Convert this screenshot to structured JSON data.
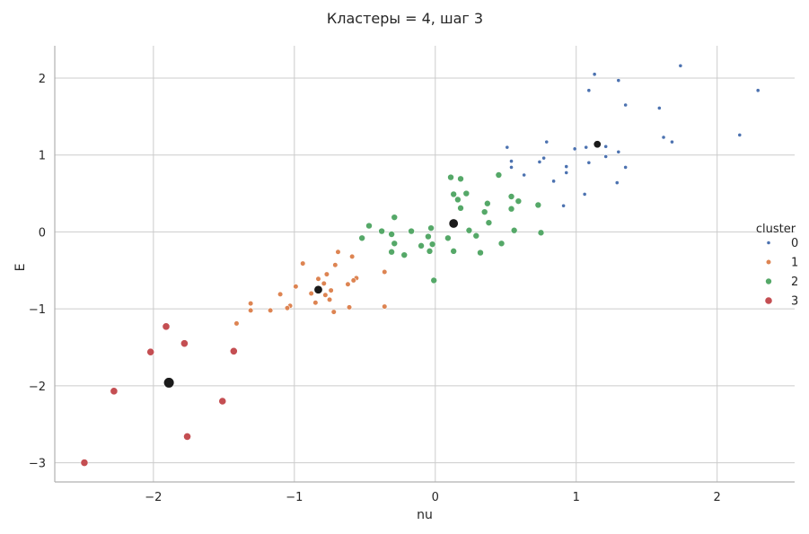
{
  "chart_data": {
    "type": "scatter",
    "title": "Кластеры = 4, шаг 3",
    "xlabel": "nu",
    "ylabel": "E",
    "xlim": [
      -2.7,
      2.55
    ],
    "ylim": [
      -3.25,
      2.42
    ],
    "xticks": [
      -2,
      -1,
      0,
      1,
      2
    ],
    "yticks": [
      -3,
      -2,
      -1,
      0,
      1,
      2
    ],
    "xtick_labels": [
      "−2",
      "−1",
      "0",
      "1",
      "2"
    ],
    "ytick_labels": [
      "−3",
      "−2",
      "−1",
      "0",
      "1",
      "2"
    ],
    "grid": true,
    "legend": {
      "title": "cluster",
      "placement": "right",
      "entries": [
        "0",
        "1",
        "2",
        "3"
      ]
    },
    "series": [
      {
        "name": "0",
        "color": "#4c72b0",
        "points": [
          [
            1.13,
            2.05
          ],
          [
            1.09,
            1.84
          ],
          [
            1.3,
            1.97
          ],
          [
            1.74,
            2.16
          ],
          [
            2.29,
            1.84
          ],
          [
            1.35,
            1.65
          ],
          [
            1.59,
            1.61
          ],
          [
            1.62,
            1.23
          ],
          [
            1.68,
            1.17
          ],
          [
            2.16,
            1.26
          ],
          [
            0.79,
            1.17
          ],
          [
            0.51,
            1.1
          ],
          [
            0.99,
            1.08
          ],
          [
            1.07,
            1.1
          ],
          [
            1.21,
            1.11
          ],
          [
            1.3,
            1.04
          ],
          [
            0.77,
            0.96
          ],
          [
            0.74,
            0.91
          ],
          [
            0.54,
            0.92
          ],
          [
            0.93,
            0.85
          ],
          [
            1.09,
            0.9
          ],
          [
            1.21,
            0.98
          ],
          [
            1.35,
            0.84
          ],
          [
            0.54,
            0.84
          ],
          [
            0.63,
            0.74
          ],
          [
            0.93,
            0.77
          ],
          [
            0.84,
            0.66
          ],
          [
            1.29,
            0.64
          ],
          [
            1.06,
            0.49
          ],
          [
            0.91,
            0.34
          ]
        ]
      },
      {
        "name": "1",
        "color": "#dd8452",
        "points": [
          [
            -0.69,
            -0.26
          ],
          [
            -0.59,
            -0.32
          ],
          [
            -0.71,
            -0.43
          ],
          [
            -0.94,
            -0.41
          ],
          [
            -0.56,
            -0.6
          ],
          [
            -0.58,
            -0.63
          ],
          [
            -0.77,
            -0.55
          ],
          [
            -0.36,
            -0.52
          ],
          [
            -0.83,
            -0.61
          ],
          [
            -0.79,
            -0.67
          ],
          [
            -0.74,
            -0.76
          ],
          [
            -0.99,
            -0.71
          ],
          [
            -0.62,
            -0.68
          ],
          [
            -0.88,
            -0.8
          ],
          [
            -0.78,
            -0.82
          ],
          [
            -1.1,
            -0.81
          ],
          [
            -0.75,
            -0.88
          ],
          [
            -0.85,
            -0.92
          ],
          [
            -1.03,
            -0.96
          ],
          [
            -1.05,
            -0.99
          ],
          [
            -1.31,
            -0.93
          ],
          [
            -1.31,
            -1.02
          ],
          [
            -1.17,
            -1.02
          ],
          [
            -0.61,
            -0.98
          ],
          [
            -0.36,
            -0.97
          ],
          [
            -0.72,
            -1.04
          ],
          [
            -1.41,
            -1.19
          ]
        ]
      },
      {
        "name": "2",
        "color": "#55a868",
        "points": [
          [
            0.11,
            0.71
          ],
          [
            0.18,
            0.69
          ],
          [
            0.45,
            0.74
          ],
          [
            0.13,
            0.49
          ],
          [
            0.22,
            0.5
          ],
          [
            0.16,
            0.42
          ],
          [
            0.54,
            0.46
          ],
          [
            0.59,
            0.4
          ],
          [
            0.37,
            0.37
          ],
          [
            0.18,
            0.31
          ],
          [
            0.54,
            0.3
          ],
          [
            0.35,
            0.26
          ],
          [
            0.73,
            0.35
          ],
          [
            -0.29,
            0.19
          ],
          [
            0.38,
            0.12
          ],
          [
            -0.47,
            0.08
          ],
          [
            -0.38,
            0.01
          ],
          [
            -0.17,
            0.01
          ],
          [
            -0.03,
            0.05
          ],
          [
            -0.31,
            -0.03
          ],
          [
            0.24,
            0.02
          ],
          [
            0.56,
            0.02
          ],
          [
            0.75,
            -0.01
          ],
          [
            -0.52,
            -0.08
          ],
          [
            -0.05,
            -0.06
          ],
          [
            0.29,
            -0.05
          ],
          [
            0.09,
            -0.08
          ],
          [
            -0.29,
            -0.15
          ],
          [
            -0.1,
            -0.18
          ],
          [
            -0.02,
            -0.16
          ],
          [
            0.47,
            -0.15
          ],
          [
            -0.31,
            -0.26
          ],
          [
            -0.22,
            -0.3
          ],
          [
            -0.04,
            -0.25
          ],
          [
            0.13,
            -0.25
          ],
          [
            0.32,
            -0.27
          ],
          [
            -0.01,
            -0.63
          ]
        ]
      },
      {
        "name": "3",
        "color": "#c44e52",
        "points": [
          [
            -1.91,
            -1.23
          ],
          [
            -2.02,
            -1.56
          ],
          [
            -1.78,
            -1.45
          ],
          [
            -1.43,
            -1.55
          ],
          [
            -2.28,
            -2.07
          ],
          [
            -1.51,
            -2.2
          ],
          [
            -1.76,
            -2.66
          ],
          [
            -2.49,
            -3.0
          ]
        ]
      }
    ],
    "centroids": {
      "color": "#1a1a1a",
      "points": [
        [
          1.15,
          1.14
        ],
        [
          -0.83,
          -0.75
        ],
        [
          0.13,
          0.11
        ],
        [
          -1.89,
          -1.96
        ]
      ]
    }
  }
}
